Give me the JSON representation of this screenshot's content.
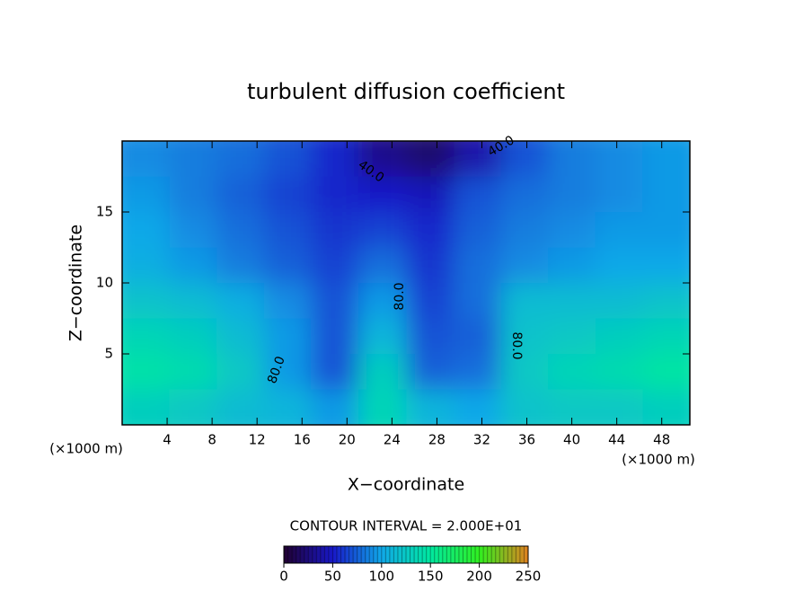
{
  "chart_data": {
    "type": "heatmap",
    "title": "turbulent diffusion coefficient",
    "x_label": "X−coordinate",
    "y_label": "Z−coordinate",
    "x_unit": "(×1000 m)",
    "y_unit": "(×1000 m)",
    "xlim": [
      0,
      50.5
    ],
    "ylim": [
      0,
      20
    ],
    "xticks": [
      4,
      8,
      12,
      16,
      20,
      24,
      28,
      32,
      36,
      40,
      44,
      48
    ],
    "yticks": [
      5,
      10,
      15
    ],
    "x": [
      2.1,
      6.3,
      10.5,
      14.7,
      18.9,
      23.1,
      27.4,
      31.6,
      35.8,
      40,
      44.2,
      48.4
    ],
    "y": [
      18.75,
      16.25,
      13.75,
      11.25,
      8.75,
      6.25,
      3.75,
      1.25
    ],
    "z": [
      [
        90,
        85,
        80,
        70,
        55,
        30,
        20,
        40,
        70,
        85,
        90,
        95
      ],
      [
        95,
        85,
        75,
        65,
        55,
        50,
        45,
        70,
        80,
        85,
        90,
        95
      ],
      [
        100,
        90,
        80,
        70,
        60,
        65,
        55,
        75,
        85,
        90,
        95,
        95
      ],
      [
        105,
        95,
        85,
        75,
        65,
        80,
        60,
        80,
        90,
        95,
        100,
        100
      ],
      [
        120,
        115,
        105,
        90,
        70,
        95,
        65,
        80,
        115,
        115,
        115,
        120
      ],
      [
        135,
        130,
        115,
        95,
        70,
        110,
        70,
        75,
        120,
        125,
        130,
        135
      ],
      [
        145,
        140,
        125,
        95,
        70,
        130,
        75,
        80,
        125,
        135,
        140,
        148
      ],
      [
        130,
        125,
        115,
        110,
        95,
        135,
        110,
        100,
        120,
        125,
        125,
        130
      ]
    ],
    "contour_labels": [
      "40.0",
      "40.0",
      "80.0",
      "80.0",
      "80.0"
    ],
    "contour_note": "CONTOUR INTERVAL = 2.000E+01",
    "colorbar_lim": [
      0,
      250
    ],
    "colorbar_ticks": [
      0,
      50,
      100,
      150,
      200,
      250
    ],
    "colormap": [
      "#200030",
      "#1818c8",
      "#10a8e8",
      "#00e8a0",
      "#30f020",
      "#e08020"
    ]
  }
}
